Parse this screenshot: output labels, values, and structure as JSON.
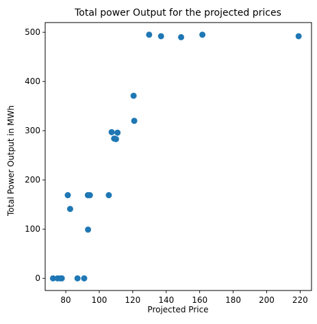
{
  "chart_data": {
    "type": "scatter",
    "title": "Total power Output for the projected prices",
    "xlabel": "Projected Price",
    "ylabel": "Total Power Output in MWh",
    "xlim": [
      67.7,
      226.8
    ],
    "ylim": [
      -24.7,
      519.7
    ],
    "xticks": [
      "80",
      "100",
      "120",
      "140",
      "160",
      "180",
      "200",
      "220"
    ],
    "xtick_values": [
      80,
      100,
      120,
      140,
      160,
      180,
      200,
      220
    ],
    "yticks": [
      "0",
      "100",
      "200",
      "300",
      "400",
      "500"
    ],
    "ytick_values": [
      0,
      100,
      200,
      300,
      400,
      500
    ],
    "grid": false,
    "marker_color": "#1f77b4",
    "points": [
      {
        "x": 72.4,
        "y": 0
      },
      {
        "x": 75.1,
        "y": 0
      },
      {
        "x": 76.8,
        "y": 0
      },
      {
        "x": 77.6,
        "y": 0
      },
      {
        "x": 81.2,
        "y": 169
      },
      {
        "x": 82.6,
        "y": 141
      },
      {
        "x": 87.0,
        "y": 0
      },
      {
        "x": 91.0,
        "y": 0
      },
      {
        "x": 93.2,
        "y": 169
      },
      {
        "x": 93.3,
        "y": 99
      },
      {
        "x": 94.4,
        "y": 169
      },
      {
        "x": 105.7,
        "y": 169
      },
      {
        "x": 107.4,
        "y": 297
      },
      {
        "x": 108.9,
        "y": 284
      },
      {
        "x": 110.0,
        "y": 283
      },
      {
        "x": 110.9,
        "y": 296
      },
      {
        "x": 120.5,
        "y": 371
      },
      {
        "x": 120.9,
        "y": 320
      },
      {
        "x": 129.8,
        "y": 495
      },
      {
        "x": 136.9,
        "y": 492
      },
      {
        "x": 148.9,
        "y": 490
      },
      {
        "x": 161.6,
        "y": 495
      },
      {
        "x": 219.1,
        "y": 492
      }
    ]
  }
}
